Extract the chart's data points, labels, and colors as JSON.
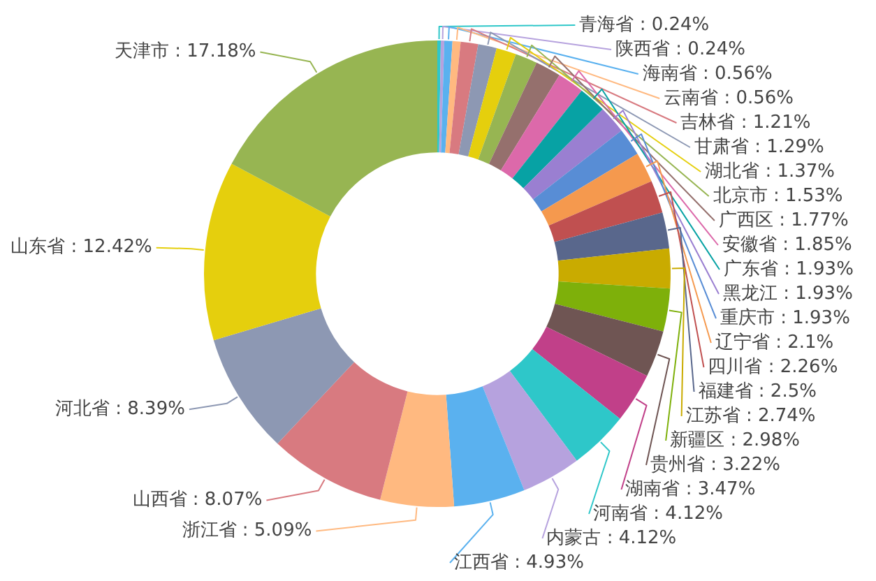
{
  "chart_data": {
    "type": "donut",
    "categories": [
      "青海省",
      "陕西省",
      "海南省",
      "云南省",
      "吉林省",
      "甘肃省",
      "湖北省",
      "北京市",
      "广西区",
      "安徽省",
      "广东省",
      "黑龙江",
      "重庆市",
      "辽宁省",
      "四川省",
      "福建省",
      "江苏省",
      "新疆区",
      "贵州省",
      "湖南省",
      "河南省",
      "内蒙古",
      "江西省",
      "浙江省",
      "山西省",
      "河北省",
      "山东省",
      "天津市"
    ],
    "values": [
      0.24,
      0.24,
      0.56,
      0.56,
      1.21,
      1.29,
      1.37,
      1.53,
      1.77,
      1.85,
      1.93,
      1.93,
      1.93,
      2.1,
      2.26,
      2.5,
      2.74,
      2.98,
      3.22,
      3.47,
      4.12,
      4.12,
      4.93,
      5.09,
      8.07,
      8.39,
      12.42,
      17.18
    ],
    "value_labels": [
      "0.24%",
      "0.24%",
      "0.56%",
      "0.56%",
      "1.21%",
      "1.29%",
      "1.37%",
      "1.53%",
      "1.77%",
      "1.85%",
      "1.93%",
      "1.93%",
      "1.93%",
      "2.1%",
      "2.26%",
      "2.5%",
      "2.74%",
      "2.98%",
      "3.22%",
      "3.47%",
      "4.12%",
      "4.12%",
      "4.93%",
      "5.09%",
      "8.07%",
      "8.39%",
      "12.42%",
      "17.18%"
    ],
    "colors": [
      "#2ec7c9",
      "#b6a2de",
      "#5ab1ef",
      "#ffb980",
      "#d87a80",
      "#8d98b3",
      "#e5cf0d",
      "#97b552",
      "#95706d",
      "#dc69aa",
      "#07a2a4",
      "#9a7fd1",
      "#588dd5",
      "#f5994e",
      "#c05050",
      "#59678c",
      "#c9ab00",
      "#7eb00a",
      "#6f5553",
      "#c14089",
      "#2ec7c9",
      "#b6a2de",
      "#5ab1ef",
      "#ffb980",
      "#d87a80",
      "#8d98b3",
      "#e5cf0d",
      "#97b552"
    ]
  }
}
